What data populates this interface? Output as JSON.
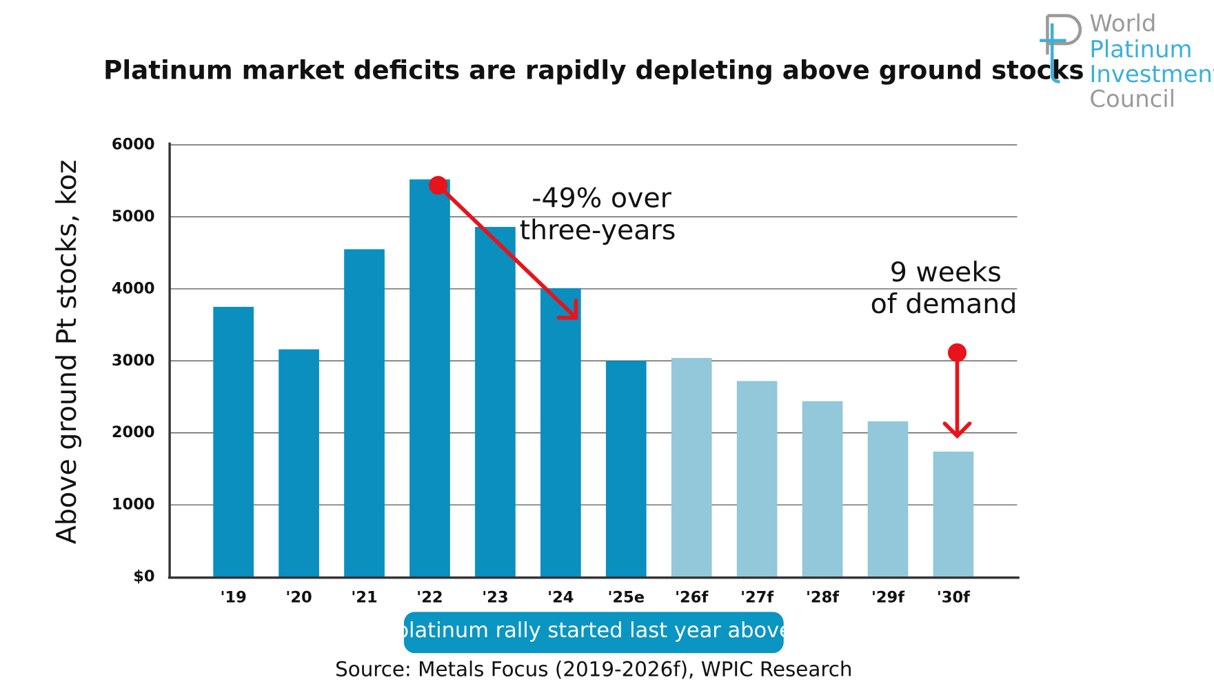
{
  "chart_data": {
    "type": "bar",
    "title": "Platinum market deficits are rapidly depleting above ground stocks",
    "ylabel": "Above ground Pt stocks, koz",
    "categories": [
      "'19",
      "'20",
      "'21",
      "'22",
      "'23",
      "'24",
      "'25e",
      "'26f",
      "'27f",
      "'28f",
      "'29f",
      "'30f"
    ],
    "values": [
      3750,
      3160,
      4550,
      5520,
      4860,
      4010,
      3000,
      3040,
      2720,
      2440,
      2160,
      1740
    ],
    "colors": [
      "#0a8fbf",
      "#0a8fbf",
      "#0a8fbf",
      "#0a8fbf",
      "#0a8fbf",
      "#0a8fbf",
      "#0a8fbf",
      "#93c7da",
      "#93c7da",
      "#93c7da",
      "#93c7da",
      "#93c7da"
    ],
    "ylim": [
      0,
      6000
    ],
    "yticks": [
      {
        "value": 0,
        "label": "$0"
      },
      1000,
      2000,
      3000,
      4000,
      5000,
      6000
    ],
    "grid": true,
    "annotations": [
      "-49% over",
      "three-years",
      "9 weeks",
      "of demand"
    ],
    "note": "platinum rally started last year above",
    "source": "Source: Metals Focus (2019-2026f), WPIC Research",
    "logo": [
      "World",
      "Platinum",
      "Investment",
      "Council"
    ]
  }
}
